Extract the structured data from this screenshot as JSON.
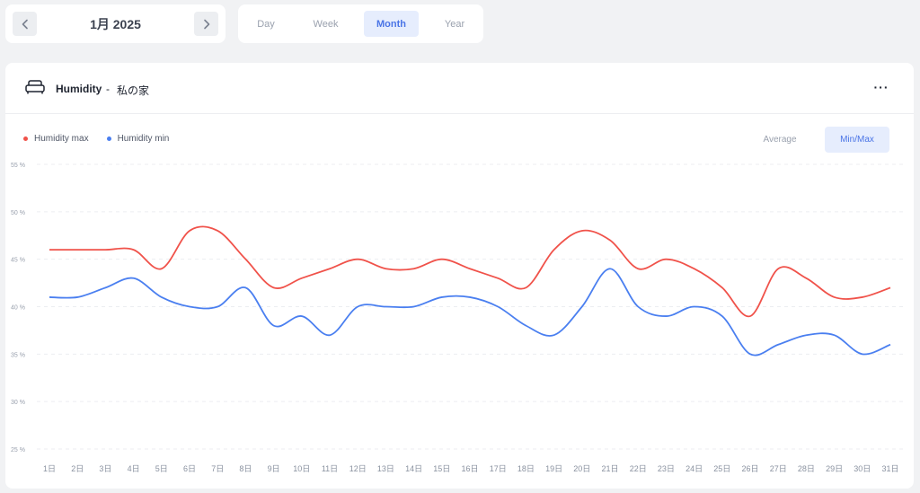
{
  "date_nav": {
    "label": "1月 2025",
    "prev_icon": "chevron-left-icon",
    "next_icon": "chevron-right-icon"
  },
  "period_tabs": [
    {
      "label": "Day",
      "active": false
    },
    {
      "label": "Week",
      "active": false
    },
    {
      "label": "Month",
      "active": true
    },
    {
      "label": "Year",
      "active": false
    }
  ],
  "panel": {
    "icon": "sofa-icon",
    "title": "Humidity",
    "separator": "-",
    "location": "私の家",
    "more_label": "···"
  },
  "legend": [
    {
      "label": "Humidity max",
      "color": "#f0524a"
    },
    {
      "label": "Humidity min",
      "color": "#4a7ff0"
    }
  ],
  "view_modes": [
    {
      "label": "Average",
      "active": false
    },
    {
      "label": "Min/Max",
      "active": true
    }
  ],
  "chart_data": {
    "type": "line",
    "x": [
      "1日",
      "2日",
      "3日",
      "4日",
      "5日",
      "6日",
      "7日",
      "8日",
      "9日",
      "10日",
      "11日",
      "12日",
      "13日",
      "14日",
      "15日",
      "16日",
      "17日",
      "18日",
      "19日",
      "20日",
      "21日",
      "22日",
      "23日",
      "24日",
      "25日",
      "26日",
      "27日",
      "28日",
      "29日",
      "30日",
      "31日"
    ],
    "y_ticks": [
      "55 %",
      "50 %",
      "45 %",
      "40 %",
      "35 %",
      "30 %",
      "25 %"
    ],
    "ylim": [
      25,
      55
    ],
    "grid": true,
    "series": [
      {
        "name": "Humidity max",
        "color": "#f0524a",
        "values": [
          46,
          46,
          46,
          46,
          44,
          48,
          48,
          45,
          42,
          43,
          44,
          45,
          44,
          44,
          45,
          44,
          43,
          42,
          46,
          48,
          47,
          44,
          45,
          44,
          42,
          39,
          44,
          43,
          41,
          41,
          42
        ]
      },
      {
        "name": "Humidity min",
        "color": "#4a7ff0",
        "values": [
          41,
          41,
          42,
          43,
          41,
          40,
          40,
          42,
          38,
          39,
          37,
          40,
          40,
          40,
          41,
          41,
          40,
          38,
          37,
          40,
          44,
          40,
          39,
          40,
          39,
          35,
          36,
          37,
          37,
          35,
          36
        ]
      }
    ]
  }
}
